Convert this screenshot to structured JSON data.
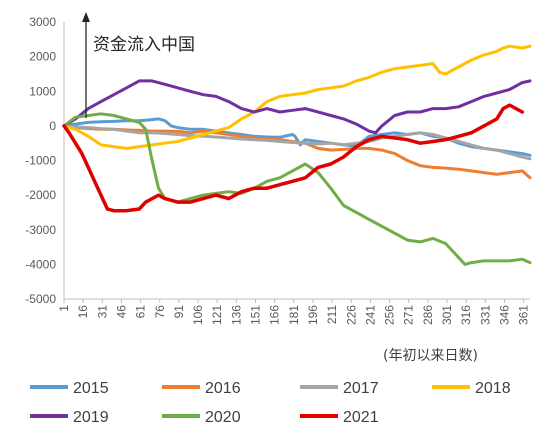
{
  "chart_data": {
    "type": "line",
    "title": "",
    "xlabel": "(年初以来日数)",
    "ylabel": "",
    "annotation": "资金流入中国",
    "xlim": [
      1,
      366
    ],
    "ylim": [
      -5000,
      3000
    ],
    "y_ticks": [
      3000,
      2000,
      1000,
      0,
      -1000,
      -2000,
      -3000,
      -4000,
      -5000
    ],
    "x_ticks": [
      1,
      16,
      31,
      46,
      61,
      76,
      91,
      106,
      121,
      136,
      151,
      166,
      181,
      196,
      211,
      226,
      241,
      256,
      271,
      286,
      301,
      316,
      331,
      346,
      361
    ],
    "grid": false,
    "legend": "bottom",
    "series": [
      {
        "name": "2015",
        "color": "#5B9BD5",
        "points": [
          [
            1,
            0
          ],
          [
            10,
            50
          ],
          [
            20,
            100
          ],
          [
            30,
            120
          ],
          [
            40,
            130
          ],
          [
            50,
            150
          ],
          [
            60,
            150
          ],
          [
            70,
            180
          ],
          [
            75,
            200
          ],
          [
            80,
            150
          ],
          [
            85,
            0
          ],
          [
            90,
            -50
          ],
          [
            100,
            -100
          ],
          [
            110,
            -100
          ],
          [
            120,
            -150
          ],
          [
            130,
            -200
          ],
          [
            140,
            -250
          ],
          [
            150,
            -300
          ],
          [
            160,
            -320
          ],
          [
            170,
            -330
          ],
          [
            180,
            -250
          ],
          [
            182,
            -300
          ],
          [
            186,
            -550
          ],
          [
            190,
            -400
          ],
          [
            200,
            -450
          ],
          [
            210,
            -500
          ],
          [
            220,
            -550
          ],
          [
            230,
            -580
          ],
          [
            240,
            -300
          ],
          [
            250,
            -250
          ],
          [
            260,
            -200
          ],
          [
            270,
            -250
          ],
          [
            280,
            -200
          ],
          [
            290,
            -300
          ],
          [
            300,
            -350
          ],
          [
            310,
            -500
          ],
          [
            320,
            -600
          ],
          [
            330,
            -650
          ],
          [
            340,
            -700
          ],
          [
            350,
            -750
          ],
          [
            360,
            -800
          ],
          [
            366,
            -850
          ]
        ]
      },
      {
        "name": "2016",
        "color": "#ED7D31",
        "points": [
          [
            1,
            0
          ],
          [
            10,
            -50
          ],
          [
            20,
            -80
          ],
          [
            30,
            -100
          ],
          [
            40,
            -100
          ],
          [
            50,
            -120
          ],
          [
            60,
            -130
          ],
          [
            70,
            -150
          ],
          [
            80,
            -150
          ],
          [
            90,
            -160
          ],
          [
            100,
            -200
          ],
          [
            110,
            -150
          ],
          [
            120,
            -200
          ],
          [
            130,
            -250
          ],
          [
            140,
            -300
          ],
          [
            150,
            -350
          ],
          [
            160,
            -380
          ],
          [
            170,
            -400
          ],
          [
            180,
            -450
          ],
          [
            190,
            -500
          ],
          [
            200,
            -650
          ],
          [
            210,
            -700
          ],
          [
            220,
            -680
          ],
          [
            230,
            -650
          ],
          [
            240,
            -650
          ],
          [
            250,
            -700
          ],
          [
            260,
            -800
          ],
          [
            270,
            -1000
          ],
          [
            280,
            -1150
          ],
          [
            290,
            -1200
          ],
          [
            300,
            -1220
          ],
          [
            310,
            -1250
          ],
          [
            320,
            -1300
          ],
          [
            330,
            -1350
          ],
          [
            340,
            -1400
          ],
          [
            350,
            -1350
          ],
          [
            360,
            -1300
          ],
          [
            366,
            -1500
          ]
        ]
      },
      {
        "name": "2017",
        "color": "#A5A5A5",
        "points": [
          [
            1,
            0
          ],
          [
            10,
            -30
          ],
          [
            20,
            -50
          ],
          [
            30,
            -80
          ],
          [
            40,
            -100
          ],
          [
            50,
            -150
          ],
          [
            60,
            -200
          ],
          [
            70,
            -200
          ],
          [
            80,
            -220
          ],
          [
            90,
            -250
          ],
          [
            100,
            -280
          ],
          [
            110,
            -300
          ],
          [
            120,
            -320
          ],
          [
            130,
            -350
          ],
          [
            140,
            -380
          ],
          [
            150,
            -400
          ],
          [
            160,
            -420
          ],
          [
            170,
            -450
          ],
          [
            180,
            -480
          ],
          [
            190,
            -500
          ],
          [
            200,
            -520
          ],
          [
            210,
            -500
          ],
          [
            220,
            -550
          ],
          [
            230,
            -500
          ],
          [
            240,
            -450
          ],
          [
            250,
            -350
          ],
          [
            260,
            -300
          ],
          [
            270,
            -250
          ],
          [
            280,
            -200
          ],
          [
            290,
            -250
          ],
          [
            300,
            -350
          ],
          [
            310,
            -450
          ],
          [
            320,
            -550
          ],
          [
            330,
            -650
          ],
          [
            340,
            -700
          ],
          [
            350,
            -800
          ],
          [
            360,
            -900
          ],
          [
            366,
            -950
          ]
        ]
      },
      {
        "name": "2018",
        "color": "#FFC000",
        "points": [
          [
            1,
            0
          ],
          [
            10,
            -100
          ],
          [
            20,
            -300
          ],
          [
            30,
            -550
          ],
          [
            40,
            -600
          ],
          [
            50,
            -650
          ],
          [
            60,
            -600
          ],
          [
            70,
            -550
          ],
          [
            80,
            -500
          ],
          [
            90,
            -450
          ],
          [
            100,
            -350
          ],
          [
            110,
            -250
          ],
          [
            120,
            -150
          ],
          [
            130,
            -50
          ],
          [
            140,
            200
          ],
          [
            150,
            400
          ],
          [
            160,
            700
          ],
          [
            170,
            850
          ],
          [
            180,
            900
          ],
          [
            190,
            950
          ],
          [
            200,
            1050
          ],
          [
            210,
            1100
          ],
          [
            220,
            1150
          ],
          [
            230,
            1300
          ],
          [
            240,
            1400
          ],
          [
            250,
            1550
          ],
          [
            260,
            1650
          ],
          [
            270,
            1700
          ],
          [
            280,
            1750
          ],
          [
            290,
            1800
          ],
          [
            295,
            1550
          ],
          [
            300,
            1500
          ],
          [
            310,
            1700
          ],
          [
            320,
            1900
          ],
          [
            330,
            2050
          ],
          [
            340,
            2150
          ],
          [
            345,
            2250
          ],
          [
            350,
            2300
          ],
          [
            360,
            2250
          ],
          [
            366,
            2300
          ]
        ]
      },
      {
        "name": "2019",
        "color": "#7030A0",
        "points": [
          [
            1,
            0
          ],
          [
            10,
            200
          ],
          [
            20,
            500
          ],
          [
            30,
            700
          ],
          [
            40,
            900
          ],
          [
            50,
            1100
          ],
          [
            60,
            1300
          ],
          [
            70,
            1300
          ],
          [
            80,
            1200
          ],
          [
            90,
            1100
          ],
          [
            100,
            1000
          ],
          [
            110,
            900
          ],
          [
            120,
            850
          ],
          [
            130,
            700
          ],
          [
            140,
            500
          ],
          [
            150,
            400
          ],
          [
            160,
            500
          ],
          [
            170,
            400
          ],
          [
            180,
            450
          ],
          [
            190,
            500
          ],
          [
            200,
            400
          ],
          [
            210,
            300
          ],
          [
            220,
            200
          ],
          [
            230,
            50
          ],
          [
            240,
            -150
          ],
          [
            245,
            -200
          ],
          [
            250,
            0
          ],
          [
            260,
            300
          ],
          [
            270,
            400
          ],
          [
            280,
            400
          ],
          [
            290,
            500
          ],
          [
            300,
            500
          ],
          [
            310,
            550
          ],
          [
            320,
            700
          ],
          [
            330,
            850
          ],
          [
            340,
            950
          ],
          [
            350,
            1050
          ],
          [
            360,
            1250
          ],
          [
            366,
            1300
          ]
        ]
      },
      {
        "name": "2020",
        "color": "#70AD47",
        "points": [
          [
            1,
            0
          ],
          [
            10,
            250
          ],
          [
            20,
            300
          ],
          [
            30,
            350
          ],
          [
            40,
            300
          ],
          [
            50,
            200
          ],
          [
            60,
            100
          ],
          [
            65,
            -100
          ],
          [
            70,
            -1000
          ],
          [
            75,
            -1800
          ],
          [
            80,
            -2100
          ],
          [
            90,
            -2200
          ],
          [
            100,
            -2100
          ],
          [
            110,
            -2000
          ],
          [
            120,
            -1950
          ],
          [
            130,
            -1900
          ],
          [
            140,
            -1950
          ],
          [
            150,
            -1800
          ],
          [
            160,
            -1600
          ],
          [
            170,
            -1500
          ],
          [
            180,
            -1300
          ],
          [
            190,
            -1100
          ],
          [
            200,
            -1350
          ],
          [
            210,
            -1800
          ],
          [
            220,
            -2300
          ],
          [
            230,
            -2500
          ],
          [
            240,
            -2700
          ],
          [
            250,
            -2900
          ],
          [
            260,
            -3100
          ],
          [
            270,
            -3300
          ],
          [
            280,
            -3350
          ],
          [
            290,
            -3250
          ],
          [
            300,
            -3400
          ],
          [
            310,
            -3800
          ],
          [
            315,
            -4000
          ],
          [
            320,
            -3950
          ],
          [
            330,
            -3900
          ],
          [
            340,
            -3900
          ],
          [
            350,
            -3900
          ],
          [
            360,
            -3850
          ],
          [
            366,
            -3950
          ]
        ]
      },
      {
        "name": "2021",
        "color": "#E00000",
        "points": [
          [
            1,
            0
          ],
          [
            5,
            -200
          ],
          [
            10,
            -500
          ],
          [
            15,
            -800
          ],
          [
            20,
            -1200
          ],
          [
            25,
            -1600
          ],
          [
            30,
            -2000
          ],
          [
            35,
            -2400
          ],
          [
            40,
            -2450
          ],
          [
            50,
            -2450
          ],
          [
            60,
            -2400
          ],
          [
            65,
            -2200
          ],
          [
            70,
            -2100
          ],
          [
            75,
            -2000
          ],
          [
            80,
            -2100
          ],
          [
            90,
            -2200
          ],
          [
            100,
            -2200
          ],
          [
            110,
            -2100
          ],
          [
            120,
            -2000
          ],
          [
            130,
            -2100
          ],
          [
            140,
            -1900
          ],
          [
            150,
            -1800
          ],
          [
            160,
            -1800
          ],
          [
            170,
            -1700
          ],
          [
            180,
            -1600
          ],
          [
            190,
            -1500
          ],
          [
            200,
            -1200
          ],
          [
            210,
            -1100
          ],
          [
            220,
            -900
          ],
          [
            230,
            -600
          ],
          [
            240,
            -400
          ],
          [
            250,
            -300
          ],
          [
            260,
            -350
          ],
          [
            270,
            -400
          ],
          [
            280,
            -500
          ],
          [
            290,
            -450
          ],
          [
            300,
            -400
          ],
          [
            310,
            -300
          ],
          [
            320,
            -200
          ],
          [
            330,
            0
          ],
          [
            340,
            200
          ],
          [
            345,
            500
          ],
          [
            350,
            600
          ],
          [
            355,
            500
          ],
          [
            360,
            400
          ]
        ]
      }
    ]
  }
}
